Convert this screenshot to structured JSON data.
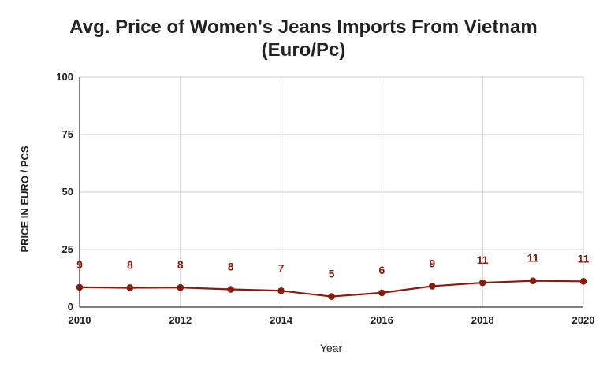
{
  "chart_data": {
    "type": "line",
    "title_line1": "Avg. Price of Women's Jeans Imports From Vietnam",
    "title_line2": "(Euro/Pc)",
    "xlabel": "Year",
    "ylabel": "PRICE IN EURO / PCS",
    "ylim": [
      0,
      100
    ],
    "yticks": [
      "0",
      "25",
      "50",
      "75",
      "100"
    ],
    "xticks": [
      "2010",
      "2012",
      "2014",
      "2016",
      "2018",
      "2020"
    ],
    "grid": true,
    "series": [
      {
        "x": [
          2010,
          2011,
          2012,
          2013,
          2014,
          2015,
          2016,
          2017,
          2018,
          2019,
          2020
        ],
        "values": [
          8.6,
          8.4,
          8.5,
          7.7,
          7.1,
          4.6,
          6.2,
          9.1,
          10.6,
          11.4,
          11.2
        ],
        "labels": [
          "9",
          "8",
          "8",
          "8",
          "7",
          "5",
          "6",
          "9",
          "11",
          "11",
          "11"
        ],
        "color": "#8b1a0a"
      }
    ]
  }
}
